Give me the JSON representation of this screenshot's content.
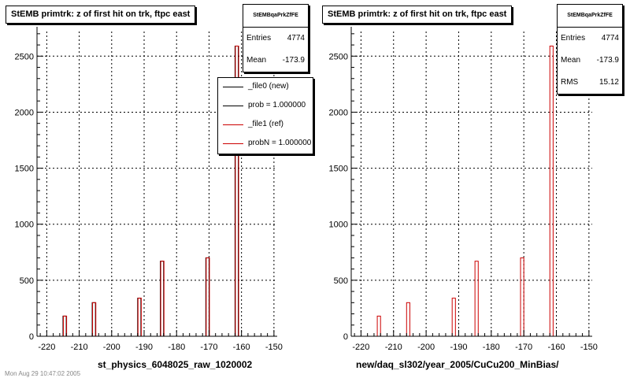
{
  "panels": [
    {
      "title": "StEMB primtrk: z of first hit on trk, ftpc east",
      "stats": {
        "name": "StEMBqaPrkZfFE",
        "rows": [
          {
            "label": "Entries",
            "value": "4774"
          },
          {
            "label": "Mean",
            "value": "-173.9"
          }
        ]
      },
      "xlabel": "st_physics_6048025_raw_1020002"
    },
    {
      "title": "StEMB primtrk: z of first hit on trk, ftpc east",
      "stats": {
        "name": "StEMBqaPrkZfFE",
        "rows": [
          {
            "label": "Entries",
            "value": "4774"
          },
          {
            "label": "Mean",
            "value": "-173.9"
          },
          {
            "label": "RMS",
            "value": "15.12"
          }
        ]
      },
      "xlabel": "new/daq_sl302/year_2005/CuCu200_MinBias/"
    }
  ],
  "legend": {
    "entries": [
      {
        "label": "_file0 (new)",
        "style": "new"
      },
      {
        "label": "prob = 1.000000",
        "style": "new"
      },
      {
        "label": "_file1 (ref)",
        "style": "ref"
      },
      {
        "label": "probN = 1.000000",
        "style": "ref"
      }
    ]
  },
  "footer": "Mon Aug 29 10:47:02 2005",
  "chart_data": [
    {
      "type": "bar",
      "title": "StEMB primtrk: z of first hit on trk, ftpc east",
      "xlabel": "st_physics_6048025_raw_1020002",
      "ylabel": "",
      "xlim": [
        -223,
        -149
      ],
      "ylim": [
        0,
        2720
      ],
      "xticks": [
        -220,
        -210,
        -200,
        -190,
        -180,
        -170,
        -160,
        -150
      ],
      "yticks": [
        0,
        500,
        1000,
        1500,
        2000,
        2500
      ],
      "grid": true,
      "series": [
        {
          "name": "_file0 (new)",
          "color": "#000000",
          "x": [
            -214.5,
            -205.5,
            -191.5,
            -184.5,
            -170.5,
            -161.5
          ],
          "values": [
            180,
            300,
            340,
            670,
            700,
            2590
          ]
        },
        {
          "name": "_file1 (ref)",
          "color": "#cc0000",
          "x": [
            -214.5,
            -205.5,
            -191.5,
            -184.5,
            -170.5,
            -161.5
          ],
          "values": [
            180,
            300,
            340,
            670,
            700,
            2590
          ]
        }
      ]
    },
    {
      "type": "bar",
      "title": "StEMB primtrk: z of first hit on trk, ftpc east",
      "xlabel": "new/daq_sl302/year_2005/CuCu200_MinBias/",
      "ylabel": "",
      "xlim": [
        -223,
        -149
      ],
      "ylim": [
        0,
        2720
      ],
      "xticks": [
        -220,
        -210,
        -200,
        -190,
        -180,
        -170,
        -160,
        -150
      ],
      "yticks": [
        0,
        500,
        1000,
        1500,
        2000,
        2500
      ],
      "grid": true,
      "series": [
        {
          "name": "",
          "color": "#cc0000",
          "x": [
            -214.5,
            -205.5,
            -191.5,
            -184.5,
            -170.5,
            -161.5
          ],
          "values": [
            180,
            300,
            340,
            670,
            700,
            2590
          ]
        }
      ]
    }
  ]
}
